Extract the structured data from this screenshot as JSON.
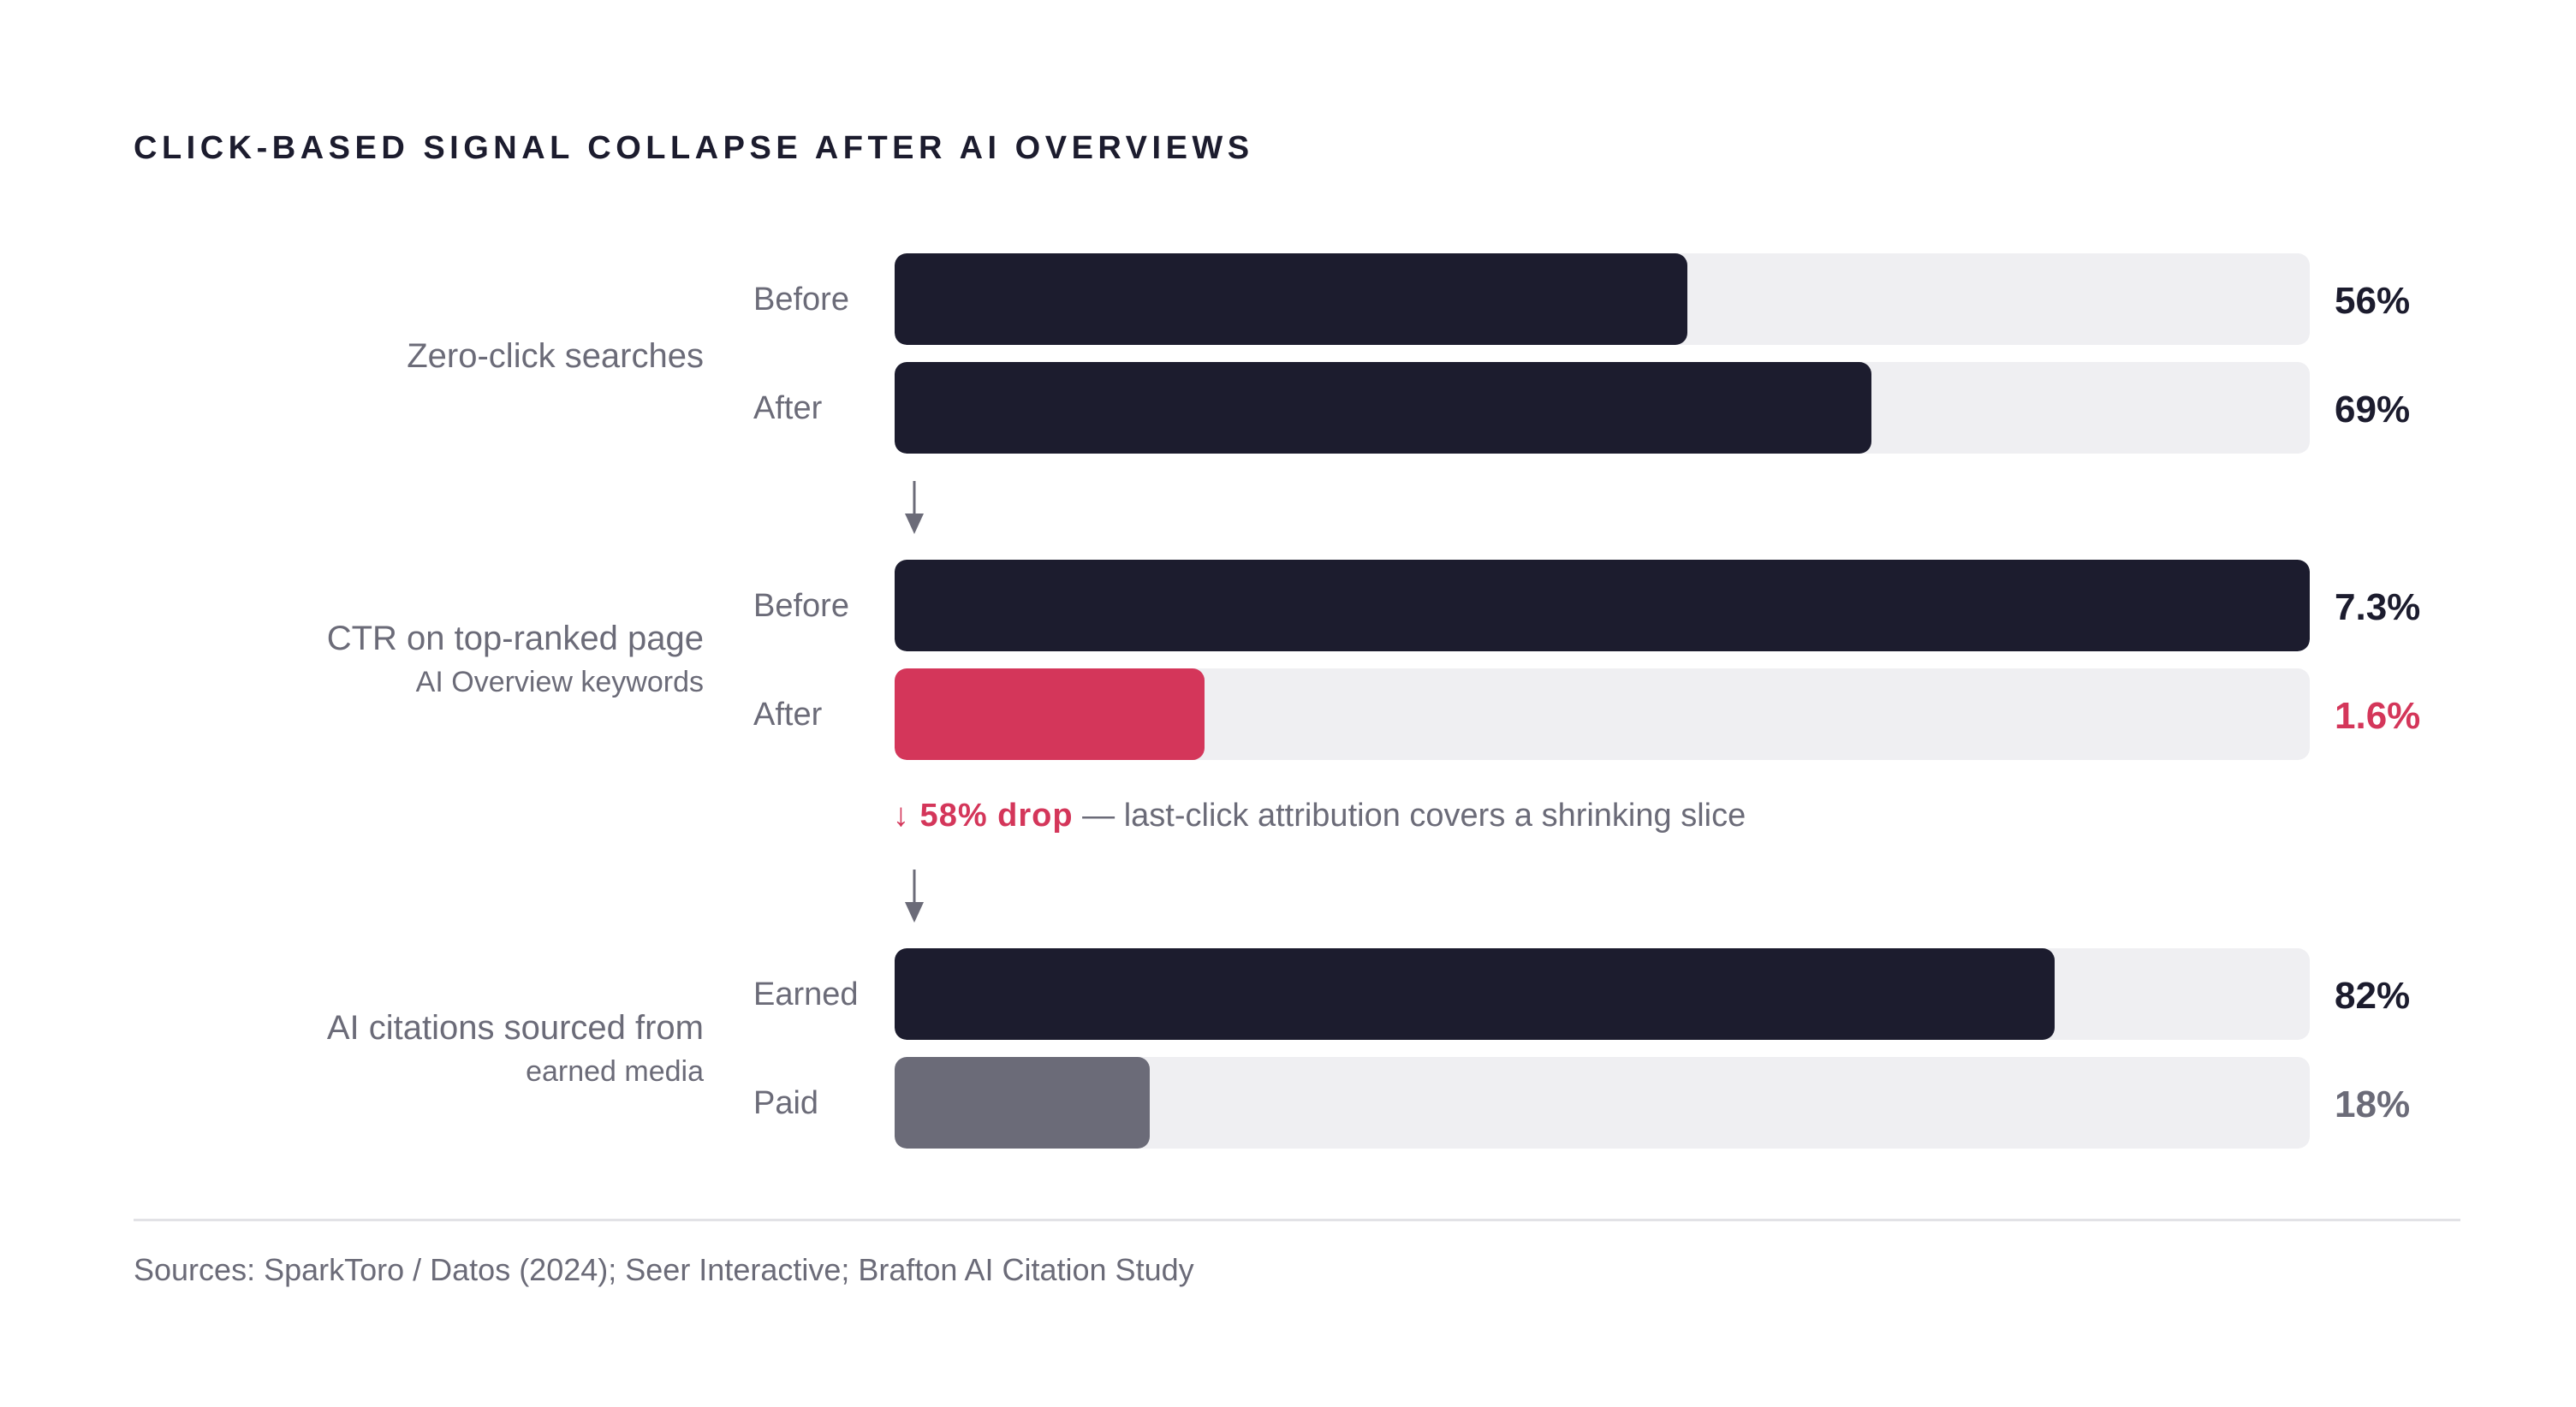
{
  "title": "CLICK-BASED SIGNAL COLLAPSE AFTER AI OVERVIEWS",
  "colors": {
    "dark": "#1c1c2e",
    "accent": "#d4365a",
    "gray": "#6b6b78",
    "track": "#efeff2"
  },
  "chart_data": {
    "type": "bar",
    "orientation": "horizontal",
    "title": "CLICK-BASED SIGNAL COLLAPSE AFTER AI OVERVIEWS",
    "groups": [
      {
        "label": "Zero-click searches",
        "sublabel": "",
        "bars": [
          {
            "label": "Before",
            "value": 56,
            "display": "56%",
            "fill_fraction": 0.56,
            "color": "#1c1c2e",
            "value_color": "#1c1c2e"
          },
          {
            "label": "After",
            "value": 69,
            "display": "69%",
            "fill_fraction": 0.69,
            "color": "#1c1c2e",
            "value_color": "#1c1c2e"
          }
        ]
      },
      {
        "label": "CTR on top-ranked page",
        "sublabel": "AI Overview keywords",
        "bars": [
          {
            "label": "Before",
            "value": 7.3,
            "display": "7.3%",
            "fill_fraction": 1.0,
            "color": "#1c1c2e",
            "value_color": "#1c1c2e"
          },
          {
            "label": "After",
            "value": 1.6,
            "display": "1.6%",
            "fill_fraction": 0.219,
            "color": "#d4365a",
            "value_color": "#d4365a"
          }
        ]
      },
      {
        "label": "AI citations sourced from",
        "sublabel": "earned media",
        "bars": [
          {
            "label": "Earned",
            "value": 82,
            "display": "82%",
            "fill_fraction": 0.82,
            "color": "#1c1c2e",
            "value_color": "#1c1c2e"
          },
          {
            "label": "Paid",
            "value": 18,
            "display": "18%",
            "fill_fraction": 0.18,
            "color": "#6b6b78",
            "value_color": "#6b6b78"
          }
        ]
      }
    ],
    "annotation": {
      "strong": "↓ 58% drop",
      "text": " — last-click attribution covers a shrinking slice"
    }
  },
  "sources": "Sources: SparkToro / Datos (2024); Seer Interactive; Brafton AI Citation Study"
}
